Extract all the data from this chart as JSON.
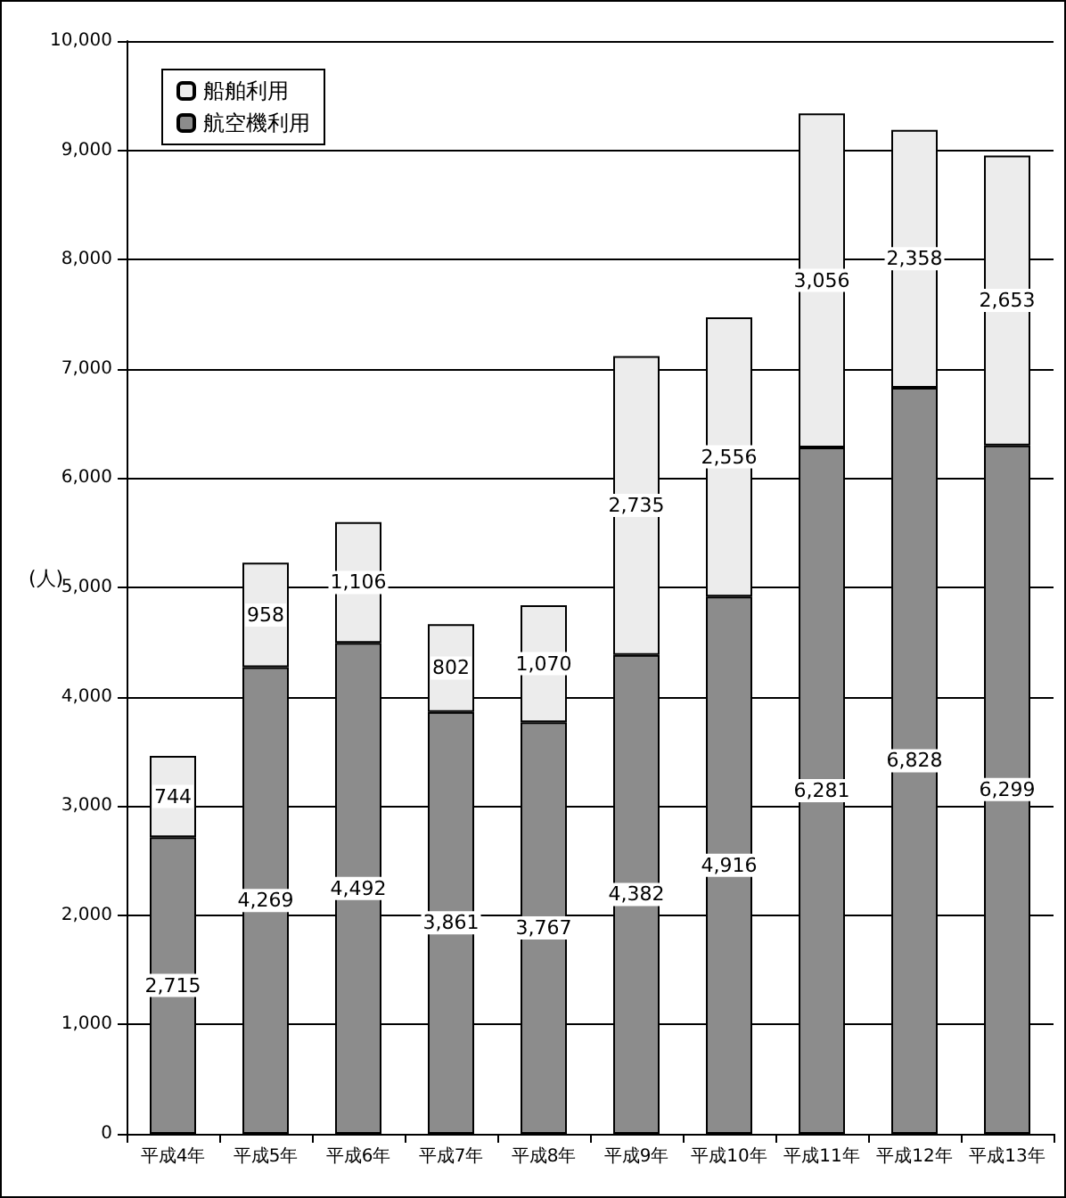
{
  "chart_data": {
    "type": "bar",
    "stacked": true,
    "ylabel": "(人)",
    "categories": [
      "平成4年",
      "平成5年",
      "平成6年",
      "平成7年",
      "平成8年",
      "平成9年",
      "平成10年",
      "平成11年",
      "平成12年",
      "平成13年"
    ],
    "series": [
      {
        "name": "航空機利用",
        "color": "#8c8c8c",
        "values": [
          2715,
          4269,
          4492,
          3861,
          3767,
          4382,
          4916,
          6281,
          6828,
          6299
        ],
        "value_labels": [
          "2,715",
          "4,269",
          "4,492",
          "3,861",
          "3,767",
          "4,382",
          "4,916",
          "6,281",
          "6,828",
          "6,299"
        ]
      },
      {
        "name": "船舶利用",
        "color": "#ececec",
        "values": [
          744,
          958,
          1106,
          802,
          1070,
          2735,
          2556,
          3056,
          2358,
          2653
        ],
        "value_labels": [
          "744",
          "958",
          "1,106",
          "802",
          "1,070",
          "2,735",
          "2,556",
          "3,056",
          "2,358",
          "2,653"
        ]
      }
    ],
    "ylim": [
      0,
      10000
    ],
    "yticks": [
      0,
      {
        "value": 1000,
        "label": "1,000"
      },
      {
        "value": 2000,
        "label": "2,000"
      },
      {
        "value": 3000,
        "label": "3,000"
      },
      {
        "value": 4000,
        "label": "4,000"
      },
      {
        "value": 5000,
        "label": "5,000"
      },
      {
        "value": 6000,
        "label": "6,000"
      },
      {
        "value": 7000,
        "label": "7,000"
      },
      {
        "value": 8000,
        "label": "8,000"
      },
      {
        "value": 9000,
        "label": "9,000"
      },
      {
        "value": 10000,
        "label": "10,000"
      }
    ],
    "grid": "y",
    "legend": "top left"
  }
}
